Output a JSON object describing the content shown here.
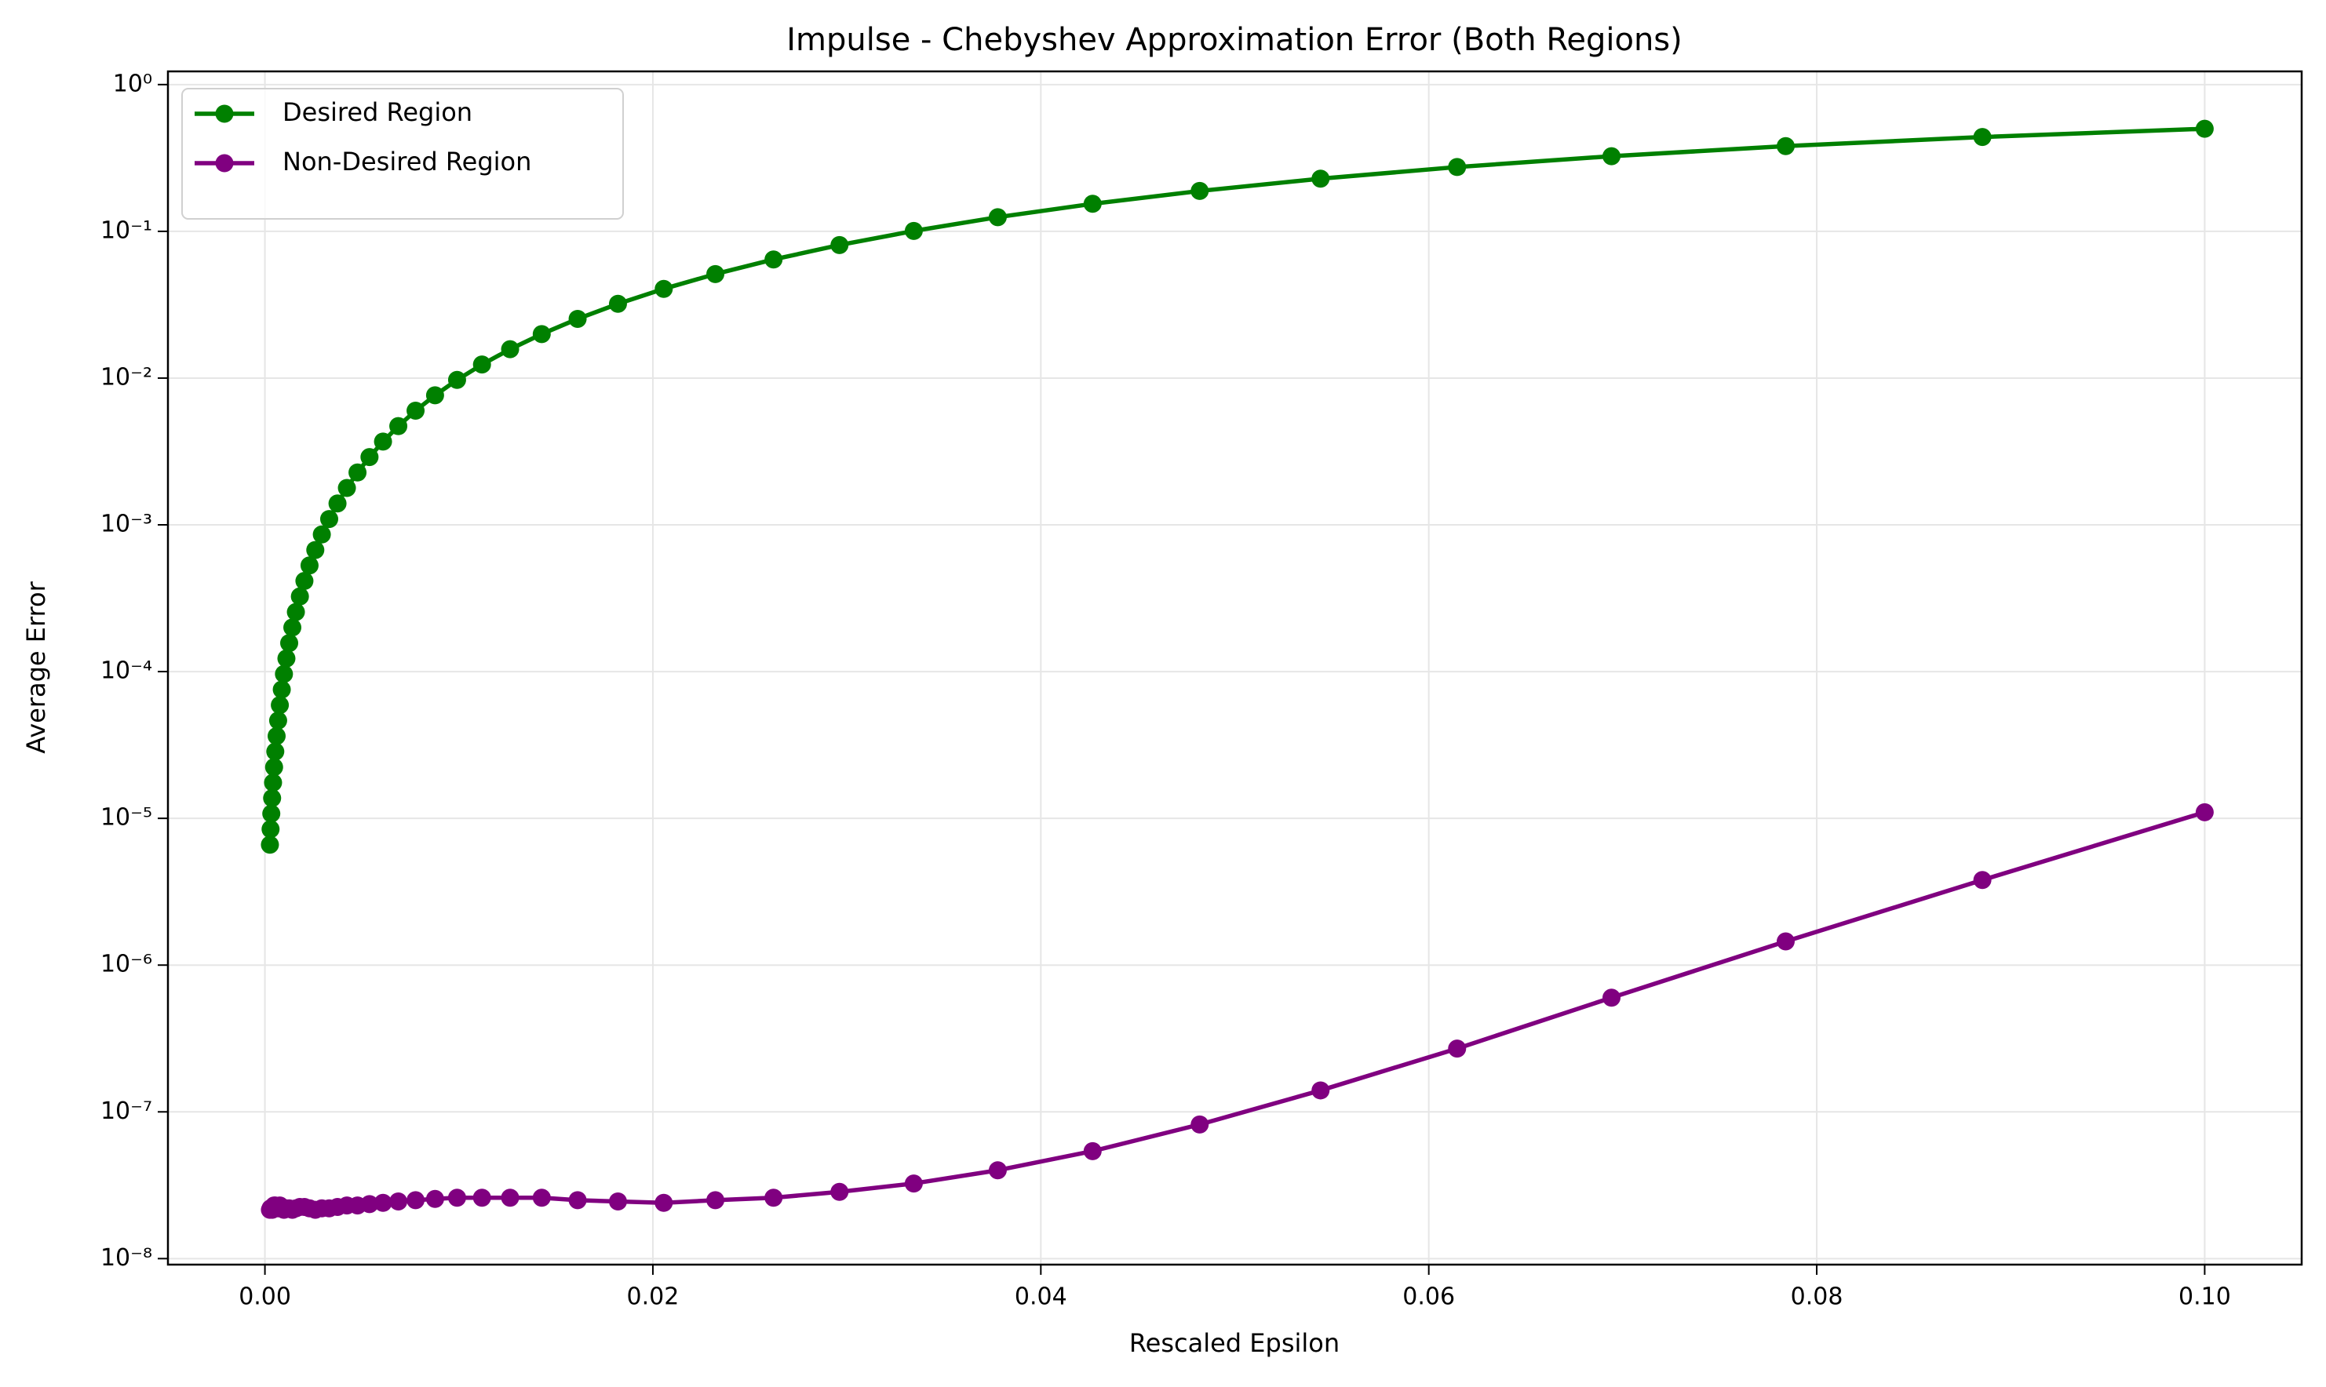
{
  "chart_data": {
    "type": "line",
    "title": "Impulse - Chebyshev Approximation Error (Both Regions)",
    "x_label": "Rescaled Epsilon",
    "y_label": "Average Error",
    "x": [
      0.0002572,
      0.0002905,
      0.0003281,
      0.0003706,
      0.0004186,
      0.0004727,
      0.0005339,
      0.000603,
      0.000681,
      0.0007691,
      0.0008687,
      0.0009811,
      0.001108,
      0.001251,
      0.001413,
      0.001596,
      0.001803,
      0.002036,
      0.0023,
      0.002597,
      0.002933,
      0.003313,
      0.003742,
      0.004226,
      0.004773,
      0.005391,
      0.006088,
      0.006876,
      0.007766,
      0.008771,
      0.009906,
      0.01119,
      0.01264,
      0.01427,
      0.01612,
      0.0182,
      0.02056,
      0.02322,
      0.02622,
      0.02962,
      0.03345,
      0.03778,
      0.04267,
      0.04819,
      0.05442,
      0.06146,
      0.06942,
      0.0784,
      0.08854,
      0.1
    ],
    "series": [
      {
        "name": "Desired Region",
        "color": "#008000",
        "values": [
          6.615e-06,
          8.439e-06,
          1.077e-05,
          1.373e-05,
          1.752e-05,
          2.234e-05,
          2.851e-05,
          3.636e-05,
          4.638e-05,
          5.915e-05,
          7.546e-05,
          9.626e-05,
          0.0001228,
          0.0001565,
          0.0001997,
          0.0002547,
          0.0003251,
          0.0004145,
          0.0005287,
          0.000674,
          0.0008596,
          0.001096,
          0.001398,
          0.001783,
          0.002273,
          0.002898,
          0.003692,
          0.004706,
          0.005995,
          0.007634,
          0.009717,
          0.01237,
          0.01573,
          0.01995,
          0.02533,
          0.03206,
          0.04056,
          0.05116,
          0.06433,
          0.08065,
          0.1006,
          0.1249,
          0.154,
          0.1884,
          0.2285,
          0.2742,
          0.3252,
          0.3807,
          0.4394,
          0.5
        ]
      },
      {
        "name": "Non-Desired Region",
        "color": "#800080",
        "values": [
          2.15e-08,
          2.2e-08,
          2.2e-08,
          2.15e-08,
          2.2e-08,
          2.3e-08,
          2.3e-08,
          2.25e-08,
          2.2e-08,
          2.3e-08,
          2.2e-08,
          2.15e-08,
          2.2e-08,
          2.2e-08,
          2.15e-08,
          2.2e-08,
          2.25e-08,
          2.25e-08,
          2.2e-08,
          2.15e-08,
          2.2e-08,
          2.2e-08,
          2.25e-08,
          2.3e-08,
          2.3e-08,
          2.35e-08,
          2.4e-08,
          2.45e-08,
          2.5e-08,
          2.55e-08,
          2.6e-08,
          2.6e-08,
          2.6e-08,
          2.6e-08,
          2.5e-08,
          2.45e-08,
          2.4e-08,
          2.5e-08,
          2.6e-08,
          2.85e-08,
          3.25e-08,
          4e-08,
          5.4e-08,
          8.2e-08,
          1.4e-07,
          2.7e-07,
          6e-07,
          1.45e-06,
          3.8e-06,
          1.1e-05
        ]
      }
    ],
    "xlim": [
      -0.005,
      0.105
    ],
    "xticks": [
      {
        "value": 0,
        "label": "0.00"
      },
      {
        "value": 0.02,
        "label": "0.02"
      },
      {
        "value": 0.04,
        "label": "0.04"
      },
      {
        "value": 0.06,
        "label": "0.06"
      },
      {
        "value": 0.08,
        "label": "0.08"
      },
      {
        "value": 0.1,
        "label": "0.10"
      }
    ],
    "ylim": [
      9.1e-09,
      1.23
    ],
    "yticks": [
      {
        "value": 1e-08,
        "label": "10⁻⁸"
      },
      {
        "value": 1e-07,
        "label": "10⁻⁷"
      },
      {
        "value": 1e-06,
        "label": "10⁻⁶"
      },
      {
        "value": 1e-05,
        "label": "10⁻⁵"
      },
      {
        "value": 0.0001,
        "label": "10⁻⁴"
      },
      {
        "value": 0.001,
        "label": "10⁻³"
      },
      {
        "value": 0.01,
        "label": "10⁻²"
      },
      {
        "value": 0.1,
        "label": "10⁻¹"
      },
      {
        "value": 1,
        "label": "10⁰"
      }
    ],
    "y_scale": "log",
    "grid": true,
    "legend": "upper left"
  }
}
